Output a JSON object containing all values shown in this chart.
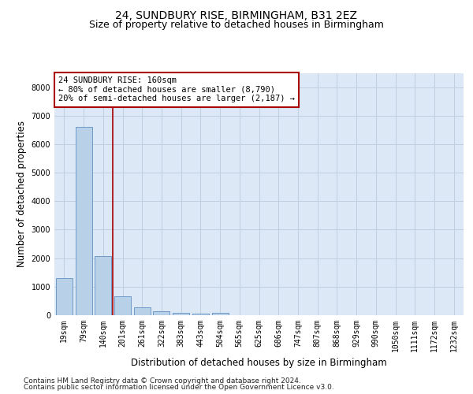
{
  "title1": "24, SUNDBURY RISE, BIRMINGHAM, B31 2EZ",
  "title2": "Size of property relative to detached houses in Birmingham",
  "xlabel": "Distribution of detached houses by size in Birmingham",
  "ylabel": "Number of detached properties",
  "categories": [
    "19sqm",
    "79sqm",
    "140sqm",
    "201sqm",
    "261sqm",
    "322sqm",
    "383sqm",
    "443sqm",
    "504sqm",
    "565sqm",
    "625sqm",
    "686sqm",
    "747sqm",
    "807sqm",
    "868sqm",
    "929sqm",
    "990sqm",
    "1050sqm",
    "1111sqm",
    "1172sqm",
    "1232sqm"
  ],
  "values": [
    1310,
    6600,
    2070,
    650,
    290,
    145,
    90,
    60,
    90,
    0,
    0,
    0,
    0,
    0,
    0,
    0,
    0,
    0,
    0,
    0,
    0
  ],
  "bar_color": "#b8d0e8",
  "bar_edge_color": "#6090c0",
  "vline_color": "#aa0000",
  "annotation_text": "24 SUNDBURY RISE: 160sqm\n← 80% of detached houses are smaller (8,790)\n20% of semi-detached houses are larger (2,187) →",
  "annotation_box_color": "#ffffff",
  "annotation_box_edge": "#aa0000",
  "ylim": [
    0,
    8500
  ],
  "yticks": [
    0,
    1000,
    2000,
    3000,
    4000,
    5000,
    6000,
    7000,
    8000
  ],
  "grid_color": "#c0cfe0",
  "background_color": "#dce8f5",
  "footer1": "Contains HM Land Registry data © Crown copyright and database right 2024.",
  "footer2": "Contains public sector information licensed under the Open Government Licence v3.0.",
  "title_fontsize": 10,
  "subtitle_fontsize": 9,
  "axis_label_fontsize": 8.5,
  "tick_fontsize": 7,
  "annotation_fontsize": 7.5,
  "footer_fontsize": 6.5
}
